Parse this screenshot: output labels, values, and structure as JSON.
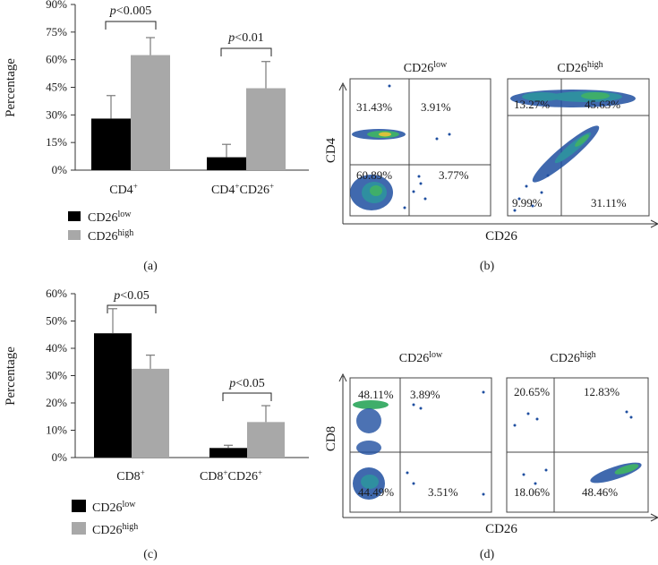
{
  "colors": {
    "low": "#000000",
    "high": "#a8a8a8",
    "axis": "#333333",
    "err": "#7a7a7a"
  },
  "legend": {
    "low_prefix": "CD26",
    "low_sup": "low",
    "high_prefix": "CD26",
    "high_sup": "high"
  },
  "chart_data": [
    {
      "panel": "(a)",
      "type": "bar",
      "ylabel": "Percentage",
      "ylim": [
        0,
        90
      ],
      "yticks": [
        "0%",
        "15%",
        "30%",
        "45%",
        "60%",
        "75%",
        "90%"
      ],
      "categories": [
        {
          "base": "CD4",
          "sup": "+",
          "base2": "",
          "sup2": ""
        },
        {
          "base": "CD4",
          "sup": "+",
          "base2": "CD26",
          "sup2": "+"
        }
      ],
      "series": [
        {
          "name": "CD26low",
          "values": [
            28,
            7
          ],
          "errors": [
            12.5,
            7
          ]
        },
        {
          "name": "CD26high",
          "values": [
            62.5,
            44.5
          ],
          "errors": [
            9.5,
            14.5
          ]
        }
      ],
      "pvalues": [
        {
          "p": "p",
          "rest": "<0.005"
        },
        {
          "p": "p",
          "rest": "<0.01"
        }
      ]
    },
    {
      "panel": "(c)",
      "type": "bar",
      "ylabel": "Percentage",
      "ylim": [
        0,
        60
      ],
      "yticks": [
        "0%",
        "10%",
        "20%",
        "30%",
        "40%",
        "50%",
        "60%"
      ],
      "categories": [
        {
          "base": "CD8",
          "sup": "+",
          "base2": "",
          "sup2": ""
        },
        {
          "base": "CD8",
          "sup": "+",
          "base2": "CD26",
          "sup2": "+"
        }
      ],
      "series": [
        {
          "name": "CD26low",
          "values": [
            45.5,
            3.5
          ],
          "errors": [
            9,
            1
          ]
        },
        {
          "name": "CD26high",
          "values": [
            32.5,
            13
          ],
          "errors": [
            5,
            6
          ]
        }
      ],
      "pvalues": [
        {
          "p": "p",
          "rest": "<0.05"
        },
        {
          "p": "p",
          "rest": "<0.05"
        }
      ]
    }
  ],
  "flow": [
    {
      "panel": "(b)",
      "ylabel": "CD4",
      "xlabel": "CD26",
      "plots": [
        {
          "title": "CD26",
          "sup": "low",
          "ul": "31.43%",
          "ur": "3.91%",
          "ll": "60.89%",
          "lr": "3.77%"
        },
        {
          "title": "CD26",
          "sup": "high",
          "ul": "13.27%",
          "ur": "45.63%",
          "ll": "9.99%",
          "lr": "31.11%"
        }
      ]
    },
    {
      "panel": "(d)",
      "ylabel": "CD8",
      "xlabel": "CD26",
      "plots": [
        {
          "title": "CD26",
          "sup": "low",
          "ul": "48.11%",
          "ur": "3.89%",
          "ll": "44.49%",
          "lr": "3.51%"
        },
        {
          "title": "CD26",
          "sup": "high",
          "ul": "20.65%",
          "ur": "12.83%",
          "ll": "18.06%",
          "lr": "48.46%"
        }
      ]
    }
  ]
}
